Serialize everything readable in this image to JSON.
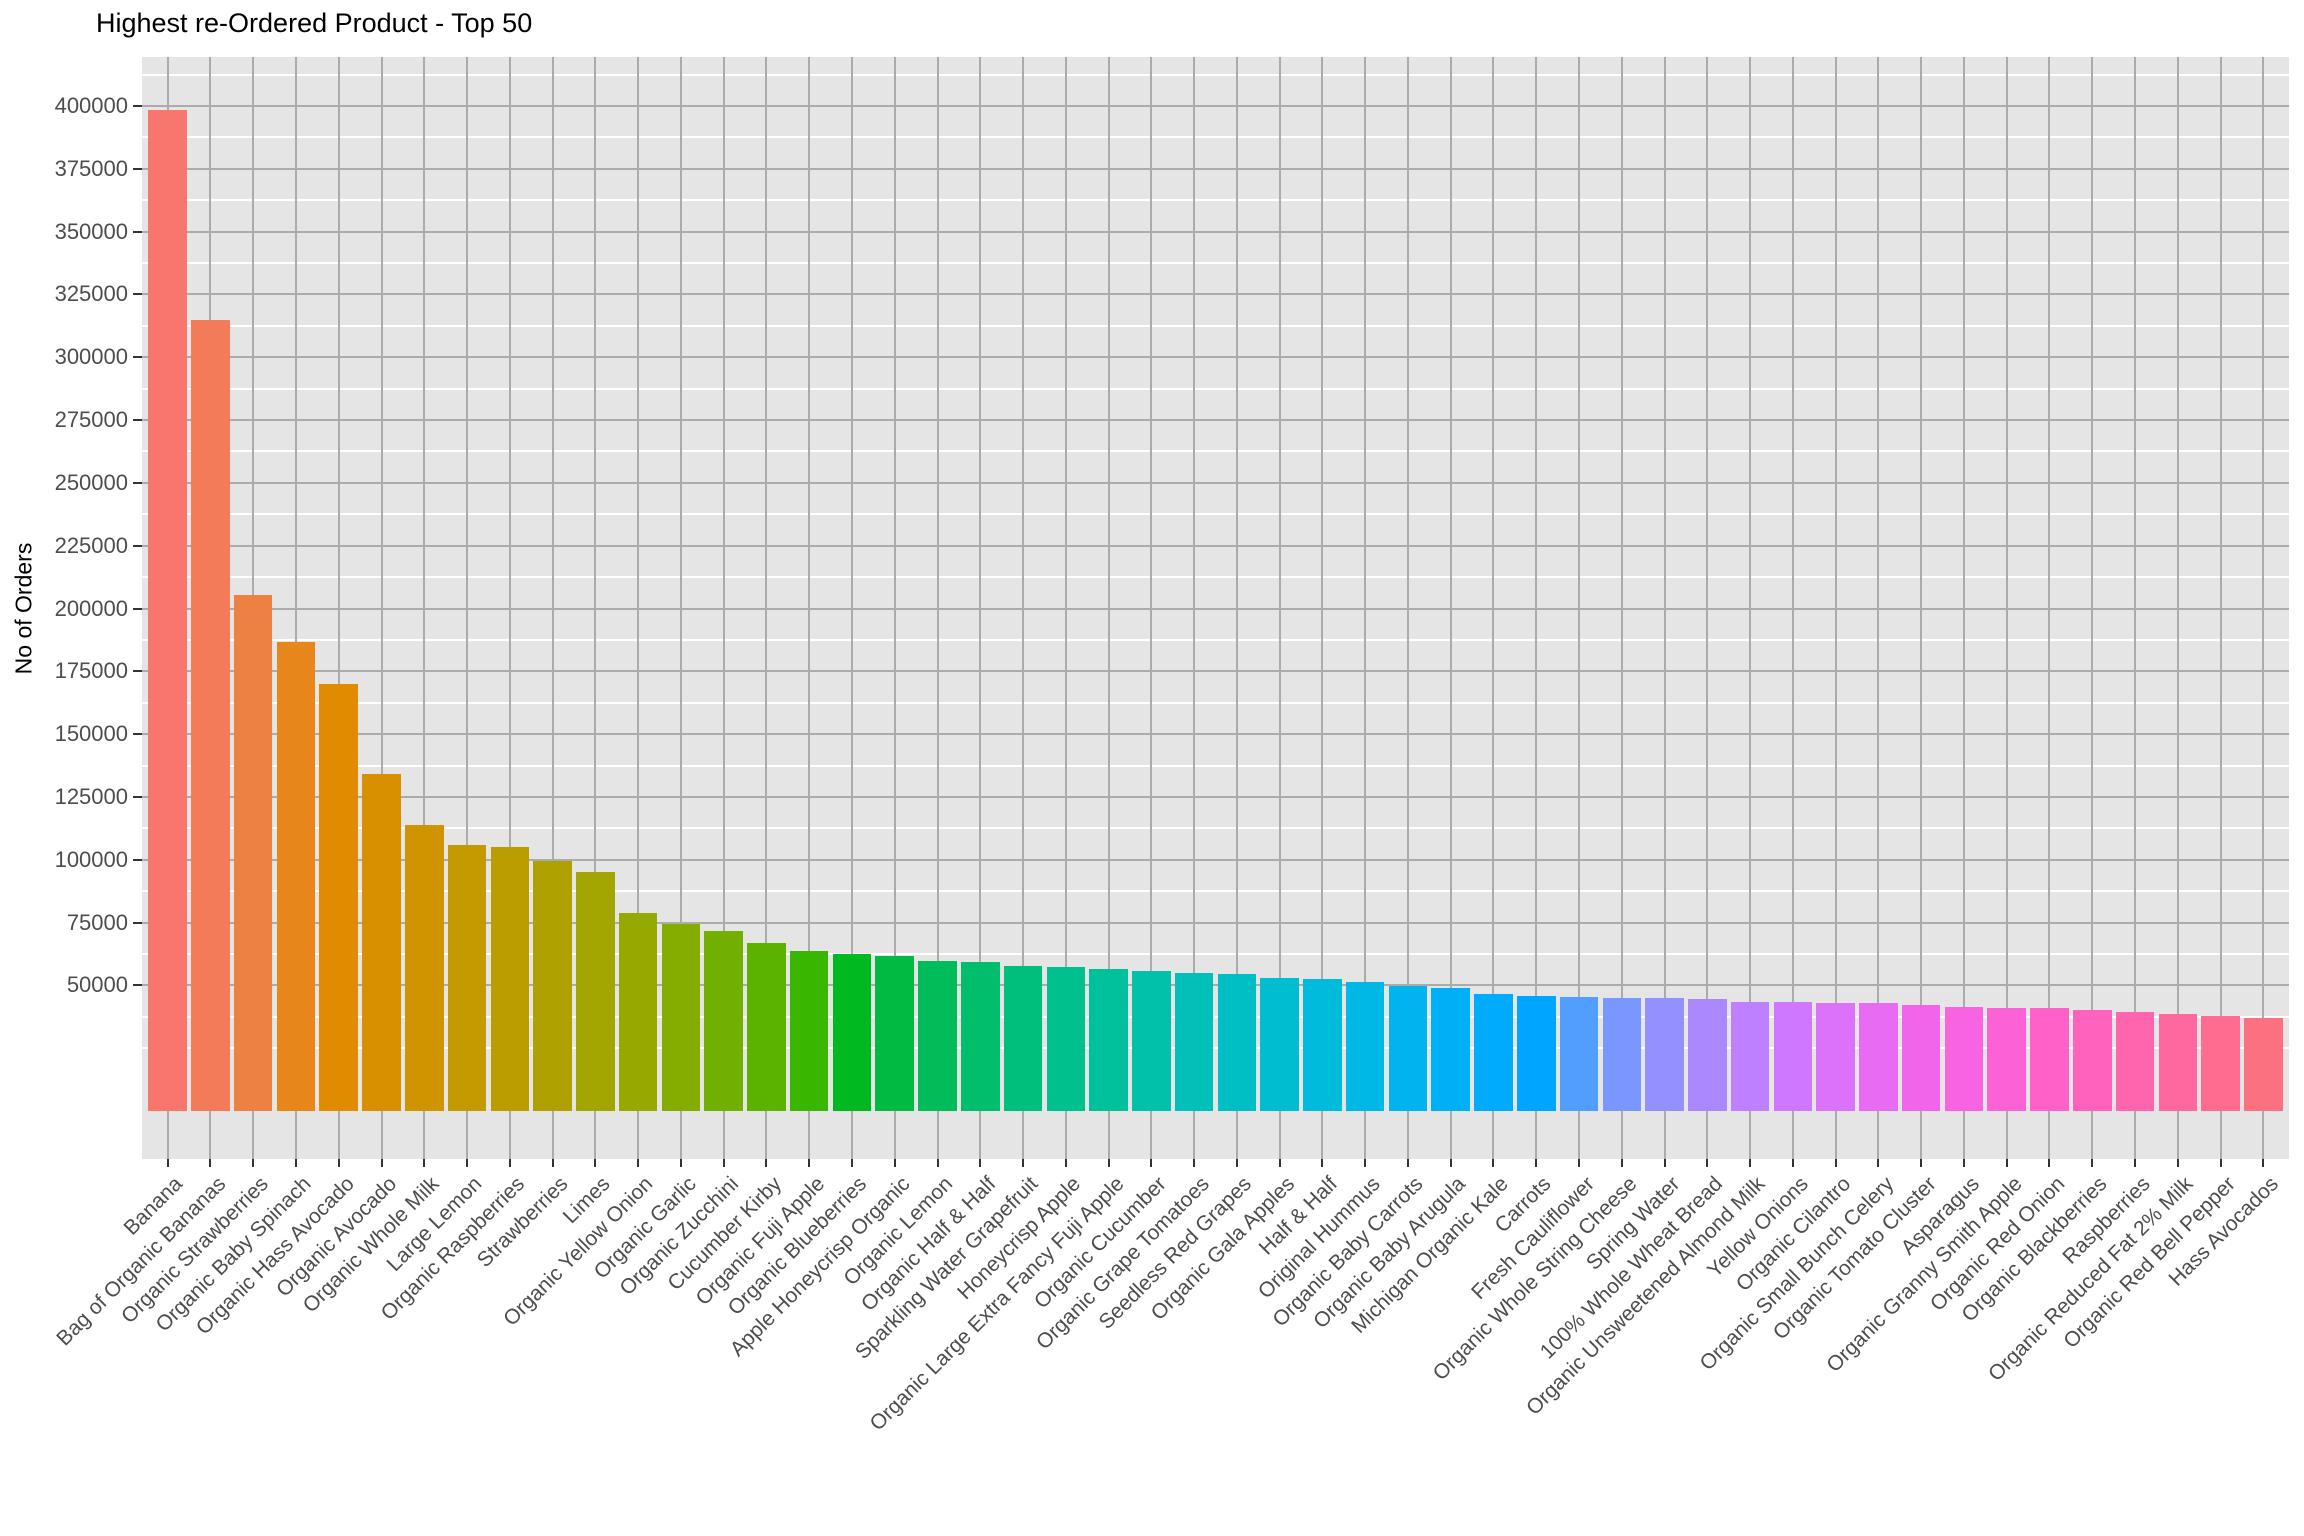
{
  "title": "Highest re-Ordered Product - Top 50",
  "y_axis": {
    "label": "No of Orders"
  },
  "x_axis": {
    "label": ""
  },
  "chart_data": {
    "type": "bar",
    "title": "Highest re-Ordered Product - Top 50",
    "xlabel": "",
    "ylabel": "No of Orders",
    "categories": [
      "Banana",
      "Bag of Organic Bananas",
      "Organic Strawberries",
      "Organic Baby Spinach",
      "Organic Hass Avocado",
      "Organic Avocado",
      "Organic Whole Milk",
      "Large Lemon",
      "Organic Raspberries",
      "Strawberries",
      "Limes",
      "Organic Yellow Onion",
      "Organic Garlic",
      "Organic Zucchini",
      "Cucumber Kirby",
      "Organic Fuji Apple",
      "Organic Blueberries",
      "Apple Honeycrisp Organic",
      "Organic Lemon",
      "Organic Half & Half",
      "Sparkling Water Grapefruit",
      "Honeycrisp Apple",
      "Organic Large Extra Fancy Fuji Apple",
      "Organic Cucumber",
      "Organic Grape Tomatoes",
      "Seedless Red Grapes",
      "Organic Gala Apples",
      "Half & Half",
      "Original Hummus",
      "Organic Baby Carrots",
      "Organic Baby Arugula",
      "Michigan Organic Kale",
      "Carrots",
      "Fresh Cauliflower",
      "Organic Whole String Cheese",
      "Spring Water",
      "100% Whole Wheat Bread",
      "Organic Unsweetened Almond Milk",
      "Yellow Onions",
      "Organic Cilantro",
      "Organic Small Bunch Celery",
      "Organic Tomato Cluster",
      "Asparagus",
      "Organic Granny Smith Apple",
      "Organic Red Onion",
      "Organic Blackberries",
      "Raspberries",
      "Organic Reduced Fat 2% Milk",
      "Organic Red Bell Pepper",
      "Hass Avocados"
    ],
    "values": [
      398500,
      315000,
      205500,
      186500,
      170000,
      134000,
      114000,
      106000,
      105200,
      99500,
      95300,
      79000,
      74500,
      71600,
      67000,
      63600,
      62400,
      61800,
      59800,
      59200,
      57800,
      57400,
      56600,
      55600,
      54800,
      54700,
      52800,
      52400,
      51300,
      49900,
      49100,
      46700,
      45900,
      45500,
      45100,
      45000,
      44400,
      43500,
      43200,
      43100,
      43000,
      42200,
      41300,
      41100,
      40900,
      40100,
      39300,
      38500,
      37800,
      36900
    ],
    "ylim": [
      0,
      418500
    ],
    "y_ticks": [
      50000,
      75000,
      100000,
      125000,
      150000,
      175000,
      200000,
      225000,
      250000,
      275000,
      300000,
      325000,
      350000,
      375000,
      400000
    ],
    "y_minor_step": 12500,
    "grid": true,
    "legend": false,
    "bar_width_ratio": 0.9,
    "x_label_angle": 45,
    "palette": {
      "name": "ggplot2-hue",
      "hue_start": 15,
      "hue_end": 375,
      "chroma": 100,
      "luminance": 65,
      "first_color": "#F8766D"
    },
    "colors": {
      "page_bg": "#FFFFFF",
      "panel_bg": "#E5E5E5",
      "grid_major": "#ABABAB",
      "grid_minor": "#FFFFFF",
      "axis_text": "#4D4D4D",
      "tick_mark": "#333333",
      "title_text": "#000000"
    }
  }
}
